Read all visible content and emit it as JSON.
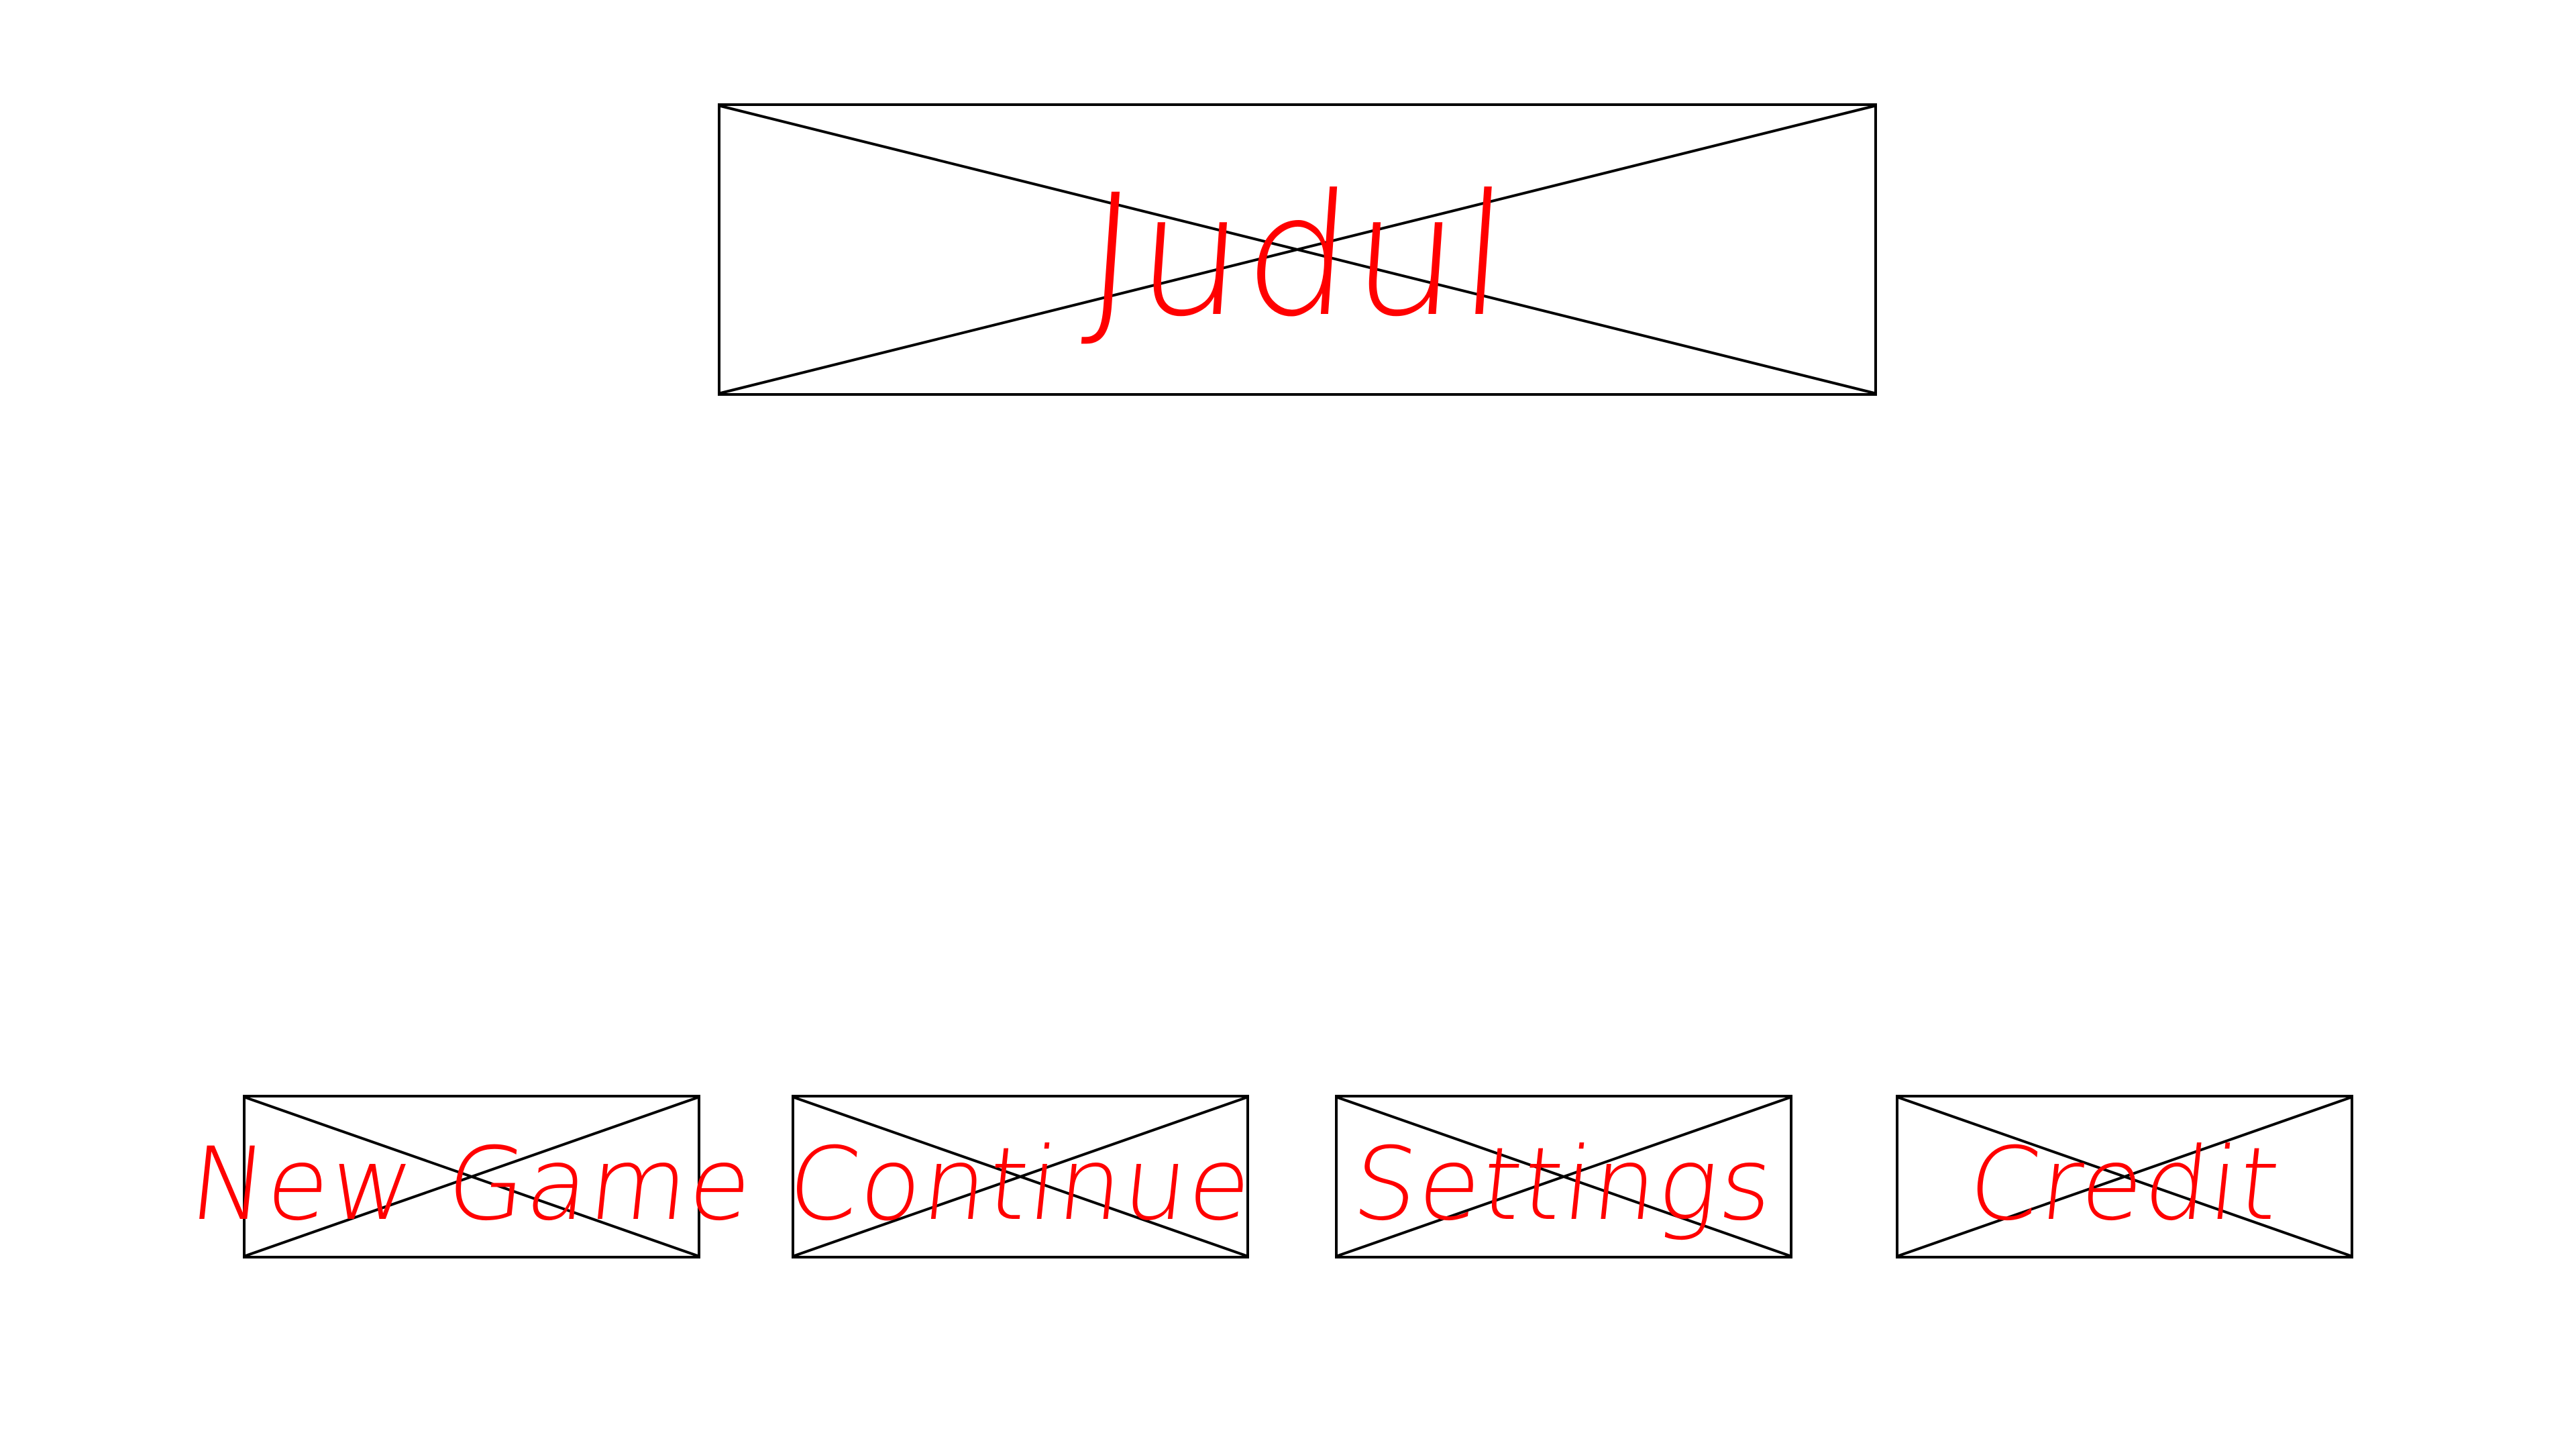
{
  "title": {
    "text": "Judul",
    "placeholder_type": "image-placeholder"
  },
  "menu": {
    "buttons": [
      {
        "label": "New Game"
      },
      {
        "label": "Continue"
      },
      {
        "label": "Settings"
      },
      {
        "label": "Credit"
      }
    ]
  },
  "colors": {
    "annotation": "#ff0000",
    "outline": "#000000",
    "background": "#ffffff"
  }
}
